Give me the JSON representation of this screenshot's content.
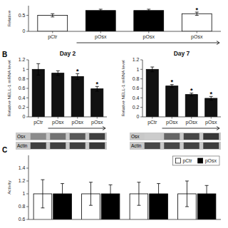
{
  "chart_data": [
    {
      "type": "bar",
      "ylabel": "Relative",
      "categories": [
        "pCtr",
        "pOsx",
        "pOsx",
        "pOsx"
      ],
      "values": [
        0.5,
        0.65,
        0.65,
        0.55
      ],
      "errors": [
        0.05,
        0.04,
        0.04,
        0.05
      ],
      "colors": [
        "white",
        "black",
        "black",
        "white"
      ],
      "significance_labels": [
        null,
        null,
        null,
        "*"
      ],
      "ylim": [
        0,
        0.8
      ],
      "yticks": [
        0,
        0.5
      ]
    },
    {
      "type": "bar",
      "title": "Day 2",
      "panel_label": "B",
      "ylabel": "Relative NELL-1 mRNA level",
      "categories": [
        "pCtr",
        "pOsx",
        "pOsx",
        "pOsx"
      ],
      "values": [
        1.0,
        0.92,
        0.85,
        0.59
      ],
      "errors": [
        0.12,
        0.05,
        0.06,
        0.05
      ],
      "color": "#111111",
      "significance_labels": [
        null,
        null,
        "*",
        "*"
      ],
      "ylim": [
        0,
        1.2
      ],
      "yticks": [
        0,
        0.2,
        0.4,
        0.6,
        0.8,
        1.0,
        1.2
      ]
    },
    {
      "type": "bar",
      "title": "Day 7",
      "ylabel": "Relative NELL-1 mRNA level",
      "categories": [
        "pCtr",
        "pOsx",
        "pOsx",
        "pOsx"
      ],
      "values": [
        1.0,
        0.65,
        0.47,
        0.39
      ],
      "errors": [
        0.05,
        0.03,
        0.03,
        0.04
      ],
      "color": "#111111",
      "significance_labels": [
        null,
        "*",
        "*",
        "*"
      ],
      "ylim": [
        0,
        1.2
      ],
      "yticks": [
        0,
        0.2,
        0.4,
        0.6,
        0.8,
        1.0,
        1.2
      ]
    },
    {
      "type": "blot",
      "rows": [
        {
          "name": "Osx",
          "gray": [
            0.55,
            0.45,
            0.35,
            0.25
          ]
        },
        {
          "name": "Actin",
          "gray": [
            0.25,
            0.25,
            0.25,
            0.22
          ]
        }
      ]
    },
    {
      "type": "blot",
      "rows": [
        {
          "name": "Osx",
          "gray": [
            0.8,
            0.4,
            0.28,
            0.22
          ]
        },
        {
          "name": "Actin",
          "gray": [
            0.28,
            0.28,
            0.26,
            0.24
          ]
        }
      ]
    },
    {
      "type": "bar",
      "panel_label": "C",
      "ylabel": "Activity",
      "categories": [
        null,
        null,
        null,
        null
      ],
      "series": [
        {
          "name": "pCtr",
          "color": "white",
          "values": [
            1.0,
            1.0,
            1.0,
            1.0
          ],
          "errors": [
            0.22,
            0.18,
            0.18,
            0.2
          ]
        },
        {
          "name": "pOsx",
          "color": "black",
          "values": [
            1.0,
            1.0,
            1.0,
            1.0
          ],
          "errors": [
            0.16,
            0.14,
            0.16,
            0.13
          ]
        }
      ],
      "ylim": [
        0.6,
        1.6
      ],
      "yticks": [
        0.6,
        0.8,
        1.0,
        1.2,
        1.4
      ],
      "legend": "upper right",
      "tick_labels": "y"
    }
  ]
}
